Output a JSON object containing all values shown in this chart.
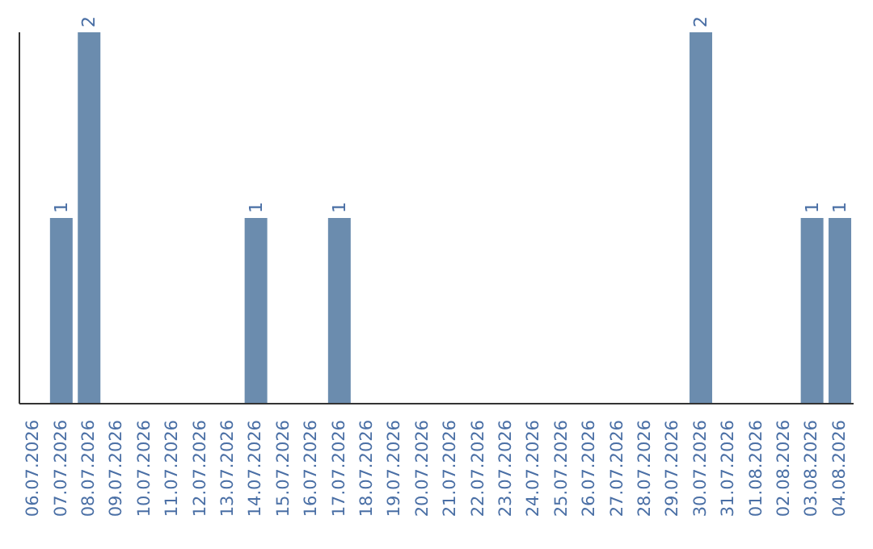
{
  "chart_data": {
    "type": "bar",
    "categories": [
      "06.07.2026",
      "07.07.2026",
      "08.07.2026",
      "09.07.2026",
      "10.07.2026",
      "11.07.2026",
      "12.07.2026",
      "13.07.2026",
      "14.07.2026",
      "15.07.2026",
      "16.07.2026",
      "17.07.2026",
      "18.07.2026",
      "19.07.2026",
      "20.07.2026",
      "21.07.2026",
      "22.07.2026",
      "23.07.2026",
      "24.07.2026",
      "25.07.2026",
      "26.07.2026",
      "27.07.2026",
      "28.07.2026",
      "29.07.2026",
      "30.07.2026",
      "31.07.2026",
      "01.08.2026",
      "02.08.2026",
      "03.08.2026",
      "04.08.2026"
    ],
    "values": [
      0,
      1,
      2,
      0,
      0,
      0,
      0,
      0,
      1,
      0,
      0,
      1,
      0,
      0,
      0,
      0,
      0,
      0,
      0,
      0,
      0,
      0,
      0,
      0,
      2,
      0,
      0,
      0,
      1,
      1
    ],
    "value_labels": [
      null,
      "1",
      "2",
      null,
      null,
      null,
      null,
      null,
      "1",
      null,
      null,
      "1",
      null,
      null,
      null,
      null,
      null,
      null,
      null,
      null,
      null,
      null,
      null,
      null,
      "2",
      null,
      null,
      null,
      "1",
      "1"
    ],
    "color": "#6b8cae",
    "grid": false,
    "legend": false,
    "tick_labels": "x"
  }
}
